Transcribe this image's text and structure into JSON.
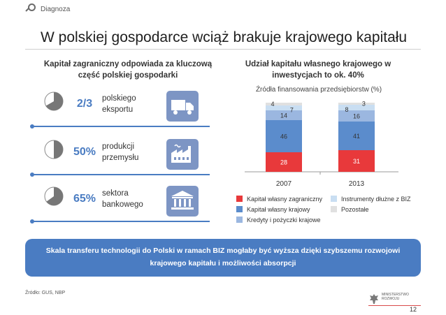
{
  "header": {
    "section_label": "Diagnoza"
  },
  "title": "W polskiej gospodarce wciąż brakuje krajowego kapitału",
  "left_panel": {
    "heading": "Kapitał zagraniczny odpowiada za kluczową część polskiej gospodarki",
    "stats": [
      {
        "value": "2/3",
        "share": 0.6667,
        "line1": "polskiego",
        "line2": "eksportu",
        "icon": "truck-icon"
      },
      {
        "value": "50%",
        "share": 0.5,
        "line1": "produkcji",
        "line2": "przemysłu",
        "icon": "factory-icon"
      },
      {
        "value": "65%",
        "share": 0.65,
        "line1": "sektora",
        "line2": "bankowego",
        "icon": "bank-icon"
      }
    ]
  },
  "right_panel": {
    "heading": "Udział kapitału własnego krajowego w inwestycjach to ok. 40%",
    "subtitle": "Źródła finansowania przedsiębiorstw (%)"
  },
  "chart_data": {
    "type": "bar",
    "stacked": true,
    "title": "Źródła finansowania przedsiębiorstw (%)",
    "categories": [
      "2007",
      "2013"
    ],
    "series": [
      {
        "name": "Kapitał własny zagraniczny",
        "color": "#e8393b",
        "values": [
          28,
          31
        ]
      },
      {
        "name": "Kapitał własny krajowy",
        "color": "#5b8ccc",
        "values": [
          46,
          41
        ]
      },
      {
        "name": "Kredyty i pożyczki krajowe",
        "color": "#9bb7e0",
        "values": [
          14,
          16
        ]
      },
      {
        "name": "Instrumenty dłużne z BIZ",
        "color": "#c9def2",
        "values": [
          7,
          8
        ]
      },
      {
        "name": "Pozostałe",
        "color": "#e0e0e0",
        "values": [
          4,
          3
        ]
      }
    ],
    "ylim": [
      0,
      100
    ],
    "grid": false,
    "legend_position": "bottom"
  },
  "banner": {
    "line1": "Skala transferu technologii do Polski w ramach BIZ mogłaby być wyższa dzięki szybszemu rozwojowi",
    "line2": "krajowego kapitału i możliwości absorpcji"
  },
  "footer": {
    "source": "Źródło: GUS, NBP",
    "ministry_line1": "MINISTERSTWO",
    "ministry_line2": "ROZWOJU",
    "page_number": "12"
  }
}
